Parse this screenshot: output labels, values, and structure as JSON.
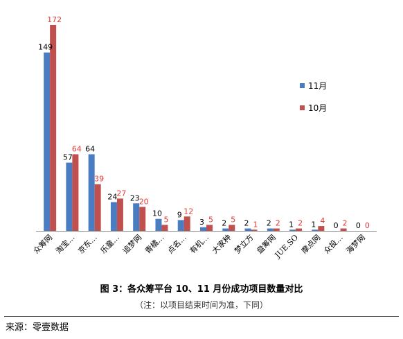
{
  "chart_data": {
    "type": "bar",
    "categories": [
      "众筹网",
      "淘宝…",
      "京东…",
      "乐童…",
      "追梦网",
      "青橘…",
      "点名…",
      "有机…",
      "大家种",
      "梦立方",
      "盘筹网",
      "JUE.SO",
      "摩点网",
      "众投…",
      "海梦网"
    ],
    "series": [
      {
        "name": "11月",
        "values": [
          149,
          57,
          64,
          24,
          23,
          10,
          9,
          3,
          2,
          2,
          2,
          1,
          1,
          0,
          0
        ]
      },
      {
        "name": "10月",
        "values": [
          172,
          64,
          39,
          27,
          20,
          5,
          12,
          5,
          5,
          1,
          2,
          2,
          4,
          2,
          0
        ]
      }
    ],
    "ylim": [
      0,
      172
    ],
    "grid": false,
    "legend_position": "right",
    "colors": {
      "11月": "#4a7cc1",
      "10月": "#c0504d"
    },
    "label_colors": {
      "11月": "#000000",
      "10月": "#e53935"
    }
  },
  "caption": {
    "title": "图 3：各众筹平台 10、11 月份成功项目数量对比",
    "note": "（注：以项目结束时间为准，下同）"
  },
  "source": "来源：零壹数据"
}
